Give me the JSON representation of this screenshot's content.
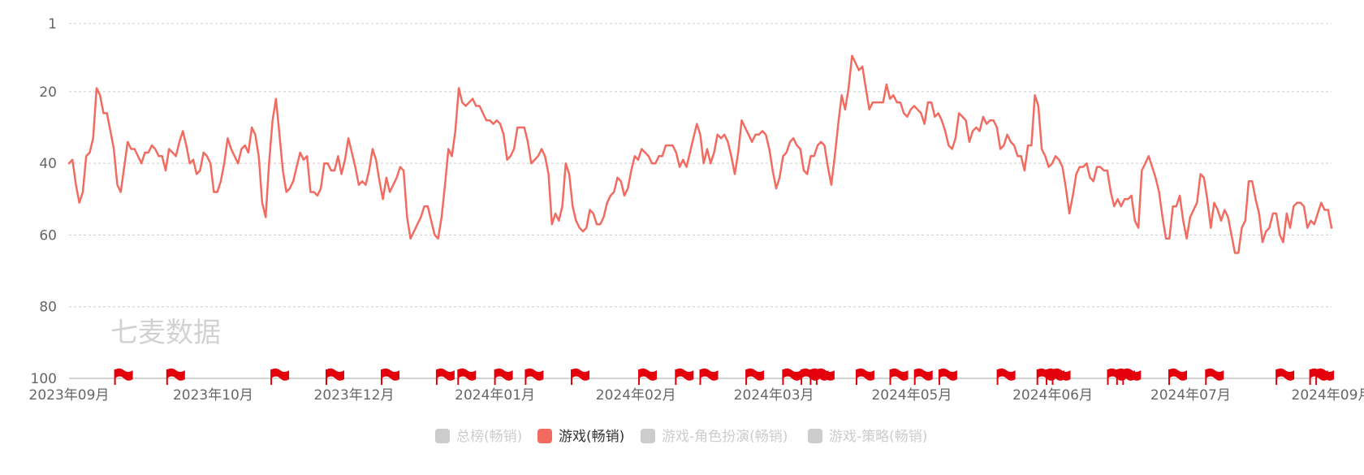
{
  "watermark": "七麦数据",
  "chart_data": {
    "type": "line",
    "title": "",
    "xlabel": "",
    "ylabel": "",
    "y_inverted": true,
    "ylim": [
      1,
      100
    ],
    "yticks": [
      1,
      20,
      40,
      60,
      80,
      100
    ],
    "grid": true,
    "legend_position": "bottom",
    "x_tick_labels": [
      "2023年09月",
      "2023年10月",
      "2023年12月",
      "2024年01月",
      "2024年02月",
      "2024年03月",
      "2024年05月",
      "2024年06月",
      "2024年07月",
      "2024年09月"
    ],
    "x_tick_dates": [
      "2023-09-01",
      "2023-10-18",
      "2023-12-03",
      "2024-01-18",
      "2024-03-04",
      "2024-04-18",
      "2024-06-02",
      "2024-07-18",
      "2024-09-01",
      "2024-10-17"
    ],
    "legend": [
      {
        "name": "总榜(畅销)",
        "color": "#cccccc",
        "active": false
      },
      {
        "name": "游戏(畅销)",
        "color": "#f26b61",
        "active": true
      },
      {
        "name": "游戏-角色扮演(畅销)",
        "color": "#cccccc",
        "active": false
      },
      {
        "name": "游戏-策略(畅销)",
        "color": "#cccccc",
        "active": false
      }
    ],
    "series": [
      {
        "name": "游戏(畅销)",
        "color": "#f26b61",
        "x_start": "2023-09-01",
        "x_end": "2024-10-17",
        "values": [
          40,
          39,
          46,
          51,
          48,
          38,
          37,
          33,
          19,
          21,
          26,
          26,
          31,
          36,
          46,
          48,
          41,
          34,
          36,
          36,
          38,
          40,
          37,
          37,
          35,
          36,
          38,
          38,
          42,
          36,
          37,
          38,
          34,
          31,
          35,
          40,
          39,
          43,
          42,
          37,
          38,
          40,
          48,
          48,
          45,
          40,
          33,
          36,
          38,
          40,
          36,
          35,
          37,
          30,
          32,
          38,
          51,
          55,
          40,
          28,
          22,
          32,
          42,
          48,
          47,
          45,
          41,
          37,
          39,
          38,
          48,
          48,
          49,
          47,
          40,
          40,
          42,
          42,
          38,
          43,
          39,
          33,
          37,
          41,
          46,
          45,
          46,
          42,
          36,
          39,
          45,
          50,
          44,
          48,
          46,
          44,
          41,
          42,
          55,
          61,
          59,
          57,
          55,
          52,
          52,
          56,
          60,
          61,
          55,
          46,
          36,
          38,
          31,
          19,
          23,
          24,
          23,
          22,
          24,
          24,
          26,
          28,
          28,
          29,
          28,
          29,
          32,
          39,
          38,
          36,
          30,
          30,
          30,
          34,
          40,
          39,
          38,
          36,
          38,
          43,
          57,
          54,
          56,
          52,
          40,
          43,
          52,
          56,
          58,
          59,
          58,
          53,
          54,
          57,
          57,
          55,
          51,
          49,
          48,
          44,
          45,
          49,
          47,
          42,
          38,
          39,
          36,
          37,
          38,
          40,
          40,
          38,
          38,
          35,
          35,
          35,
          37,
          41,
          39,
          41,
          37,
          33,
          29,
          32,
          40,
          36,
          40,
          37,
          32,
          33,
          32,
          34,
          38,
          43,
          37,
          28,
          30,
          32,
          34,
          32,
          32,
          31,
          32,
          36,
          42,
          47,
          44,
          38,
          37,
          34,
          33,
          35,
          36,
          42,
          43,
          38,
          38,
          35,
          34,
          35,
          41,
          46,
          38,
          29,
          21,
          25,
          19,
          10,
          12,
          14,
          13,
          19,
          25,
          23,
          23,
          23,
          23,
          18,
          22,
          21,
          23,
          23,
          26,
          27,
          25,
          24,
          25,
          26,
          29,
          23,
          23,
          27,
          26,
          28,
          31,
          35,
          36,
          33,
          26,
          27,
          28,
          34,
          31,
          30,
          31,
          27,
          29,
          28,
          28,
          30,
          36,
          35,
          32,
          34,
          35,
          38,
          38,
          42,
          35,
          35,
          21,
          24,
          36,
          38,
          41,
          40,
          38,
          39,
          41,
          47,
          54,
          49,
          43,
          41,
          41,
          40,
          44,
          45,
          41,
          41,
          42,
          42,
          48,
          52,
          50,
          52,
          50,
          50,
          49,
          56,
          58,
          42,
          40,
          38,
          41,
          44,
          48,
          55,
          61,
          61,
          52,
          52,
          49,
          56,
          61,
          55,
          53,
          51,
          43,
          44,
          50,
          58,
          51,
          53,
          56,
          53,
          55,
          60,
          65,
          65,
          58,
          56,
          45,
          45,
          50,
          54,
          62,
          59,
          58,
          54,
          54,
          60,
          62,
          54,
          58,
          52,
          51,
          51,
          52,
          58,
          56,
          57,
          54,
          51,
          53,
          53,
          58
        ]
      }
    ],
    "event_markers": [
      "2023-09-16",
      "2023-10-03",
      "2023-11-06",
      "2023-11-24",
      "2023-12-12",
      "2023-12-30",
      "2024-01-06",
      "2024-01-18",
      "2024-01-28",
      "2024-02-12",
      "2024-03-05",
      "2024-03-17",
      "2024-03-25",
      "2024-04-09",
      "2024-04-21",
      "2024-04-27",
      "2024-04-30",
      "2024-05-02",
      "2024-05-15",
      "2024-05-26",
      "2024-06-03",
      "2024-06-11",
      "2024-06-30",
      "2024-07-13",
      "2024-07-16",
      "2024-07-18",
      "2024-08-05",
      "2024-08-08",
      "2024-08-10",
      "2024-08-25",
      "2024-09-06",
      "2024-09-29",
      "2024-10-10",
      "2024-10-12"
    ]
  }
}
